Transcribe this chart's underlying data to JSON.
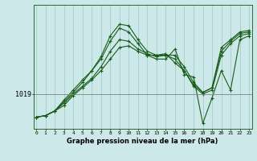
{
  "xlabel_label": "Graphe pression niveau de la mer (hPa)",
  "background_color": "#cce8e8",
  "line_color": "#1a5c1a",
  "grid_color": "#9cc8c8",
  "hline_color": "#888888",
  "hline_y": 1019,
  "x_ticks": [
    0,
    1,
    2,
    3,
    4,
    5,
    6,
    7,
    8,
    9,
    10,
    11,
    12,
    13,
    14,
    15,
    16,
    17,
    18,
    19,
    20,
    21,
    22,
    23
  ],
  "ylim": [
    1014.5,
    1030.5
  ],
  "xlim": [
    -0.3,
    23.3
  ],
  "series1": [
    1016.0,
    1016.2,
    1016.8,
    1017.5,
    1018.8,
    1019.8,
    1020.8,
    1022.0,
    1023.5,
    1025.0,
    1025.2,
    1024.5,
    1024.0,
    1024.0,
    1024.2,
    1023.0,
    1022.0,
    1020.0,
    1019.0,
    1019.5,
    1024.0,
    1025.5,
    1026.5,
    1026.8
  ],
  "series2": [
    1016.0,
    1016.2,
    1016.8,
    1018.0,
    1019.2,
    1020.5,
    1022.0,
    1023.8,
    1026.5,
    1028.0,
    1027.8,
    1026.0,
    1024.5,
    1024.0,
    1024.0,
    1024.0,
    1022.5,
    1020.5,
    1019.2,
    1019.8,
    1025.0,
    1026.0,
    1027.0,
    1027.2
  ],
  "series3": [
    1016.0,
    1016.2,
    1016.8,
    1018.2,
    1019.5,
    1020.8,
    1022.0,
    1023.5,
    1025.8,
    1027.5,
    1027.0,
    1025.5,
    1024.0,
    1023.5,
    1023.5,
    1024.8,
    1021.5,
    1021.2,
    1015.2,
    1018.5,
    1022.0,
    1019.5,
    1026.0,
    1026.5
  ],
  "series4": [
    1016.0,
    1016.2,
    1016.8,
    1017.8,
    1019.0,
    1020.0,
    1021.0,
    1022.5,
    1024.5,
    1026.0,
    1025.8,
    1024.8,
    1024.2,
    1023.8,
    1024.0,
    1023.5,
    1022.0,
    1020.2,
    1019.2,
    1019.8,
    1024.5,
    1025.8,
    1026.8,
    1027.0
  ]
}
